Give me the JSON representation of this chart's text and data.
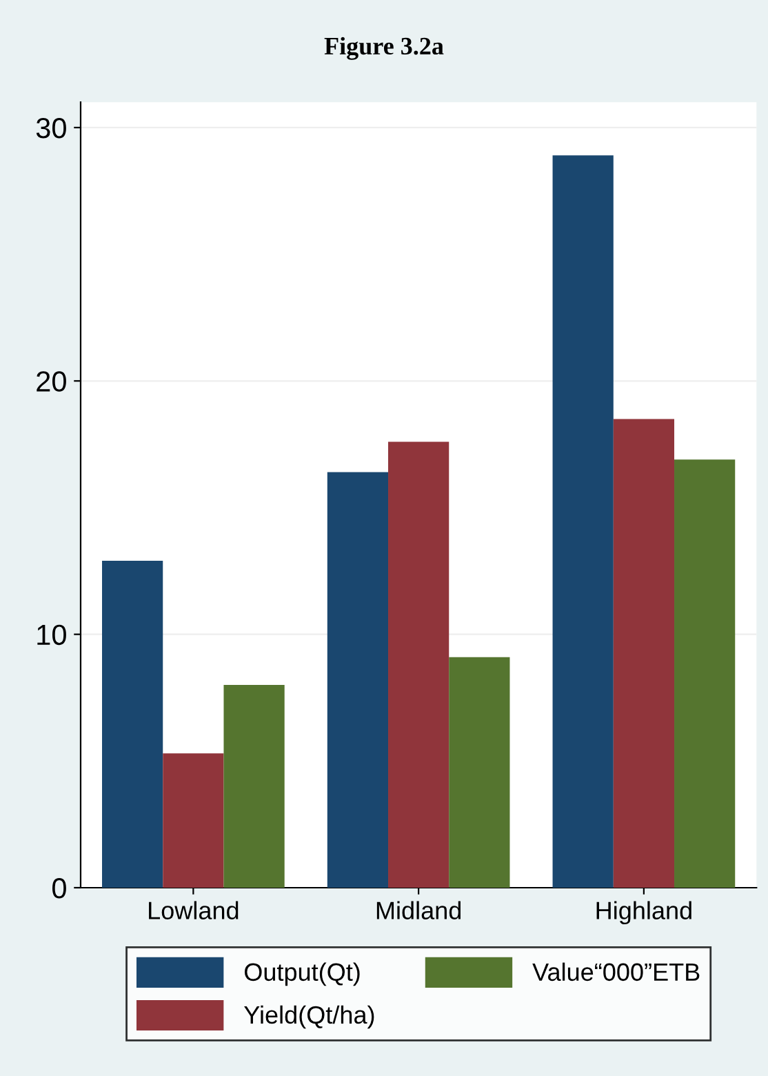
{
  "chart_data": {
    "type": "bar",
    "title": "Figure 3.2a",
    "categories": [
      "Lowland",
      "Midland",
      "Highland"
    ],
    "series": [
      {
        "name": "Output(Qt)",
        "color": "#1a476f",
        "values": [
          12.9,
          16.4,
          28.9
        ]
      },
      {
        "name": "Yield(Qt/ha)",
        "color": "#90353b",
        "values": [
          5.3,
          17.6,
          18.5
        ]
      },
      {
        "name": "Value“000”ETB",
        "color": "#55752f",
        "values": [
          8.0,
          9.1,
          16.9
        ]
      }
    ],
    "ylim": [
      0,
      31
    ],
    "yticks": [
      0,
      10,
      20,
      30
    ],
    "grid": "y",
    "legend": "bottom"
  }
}
